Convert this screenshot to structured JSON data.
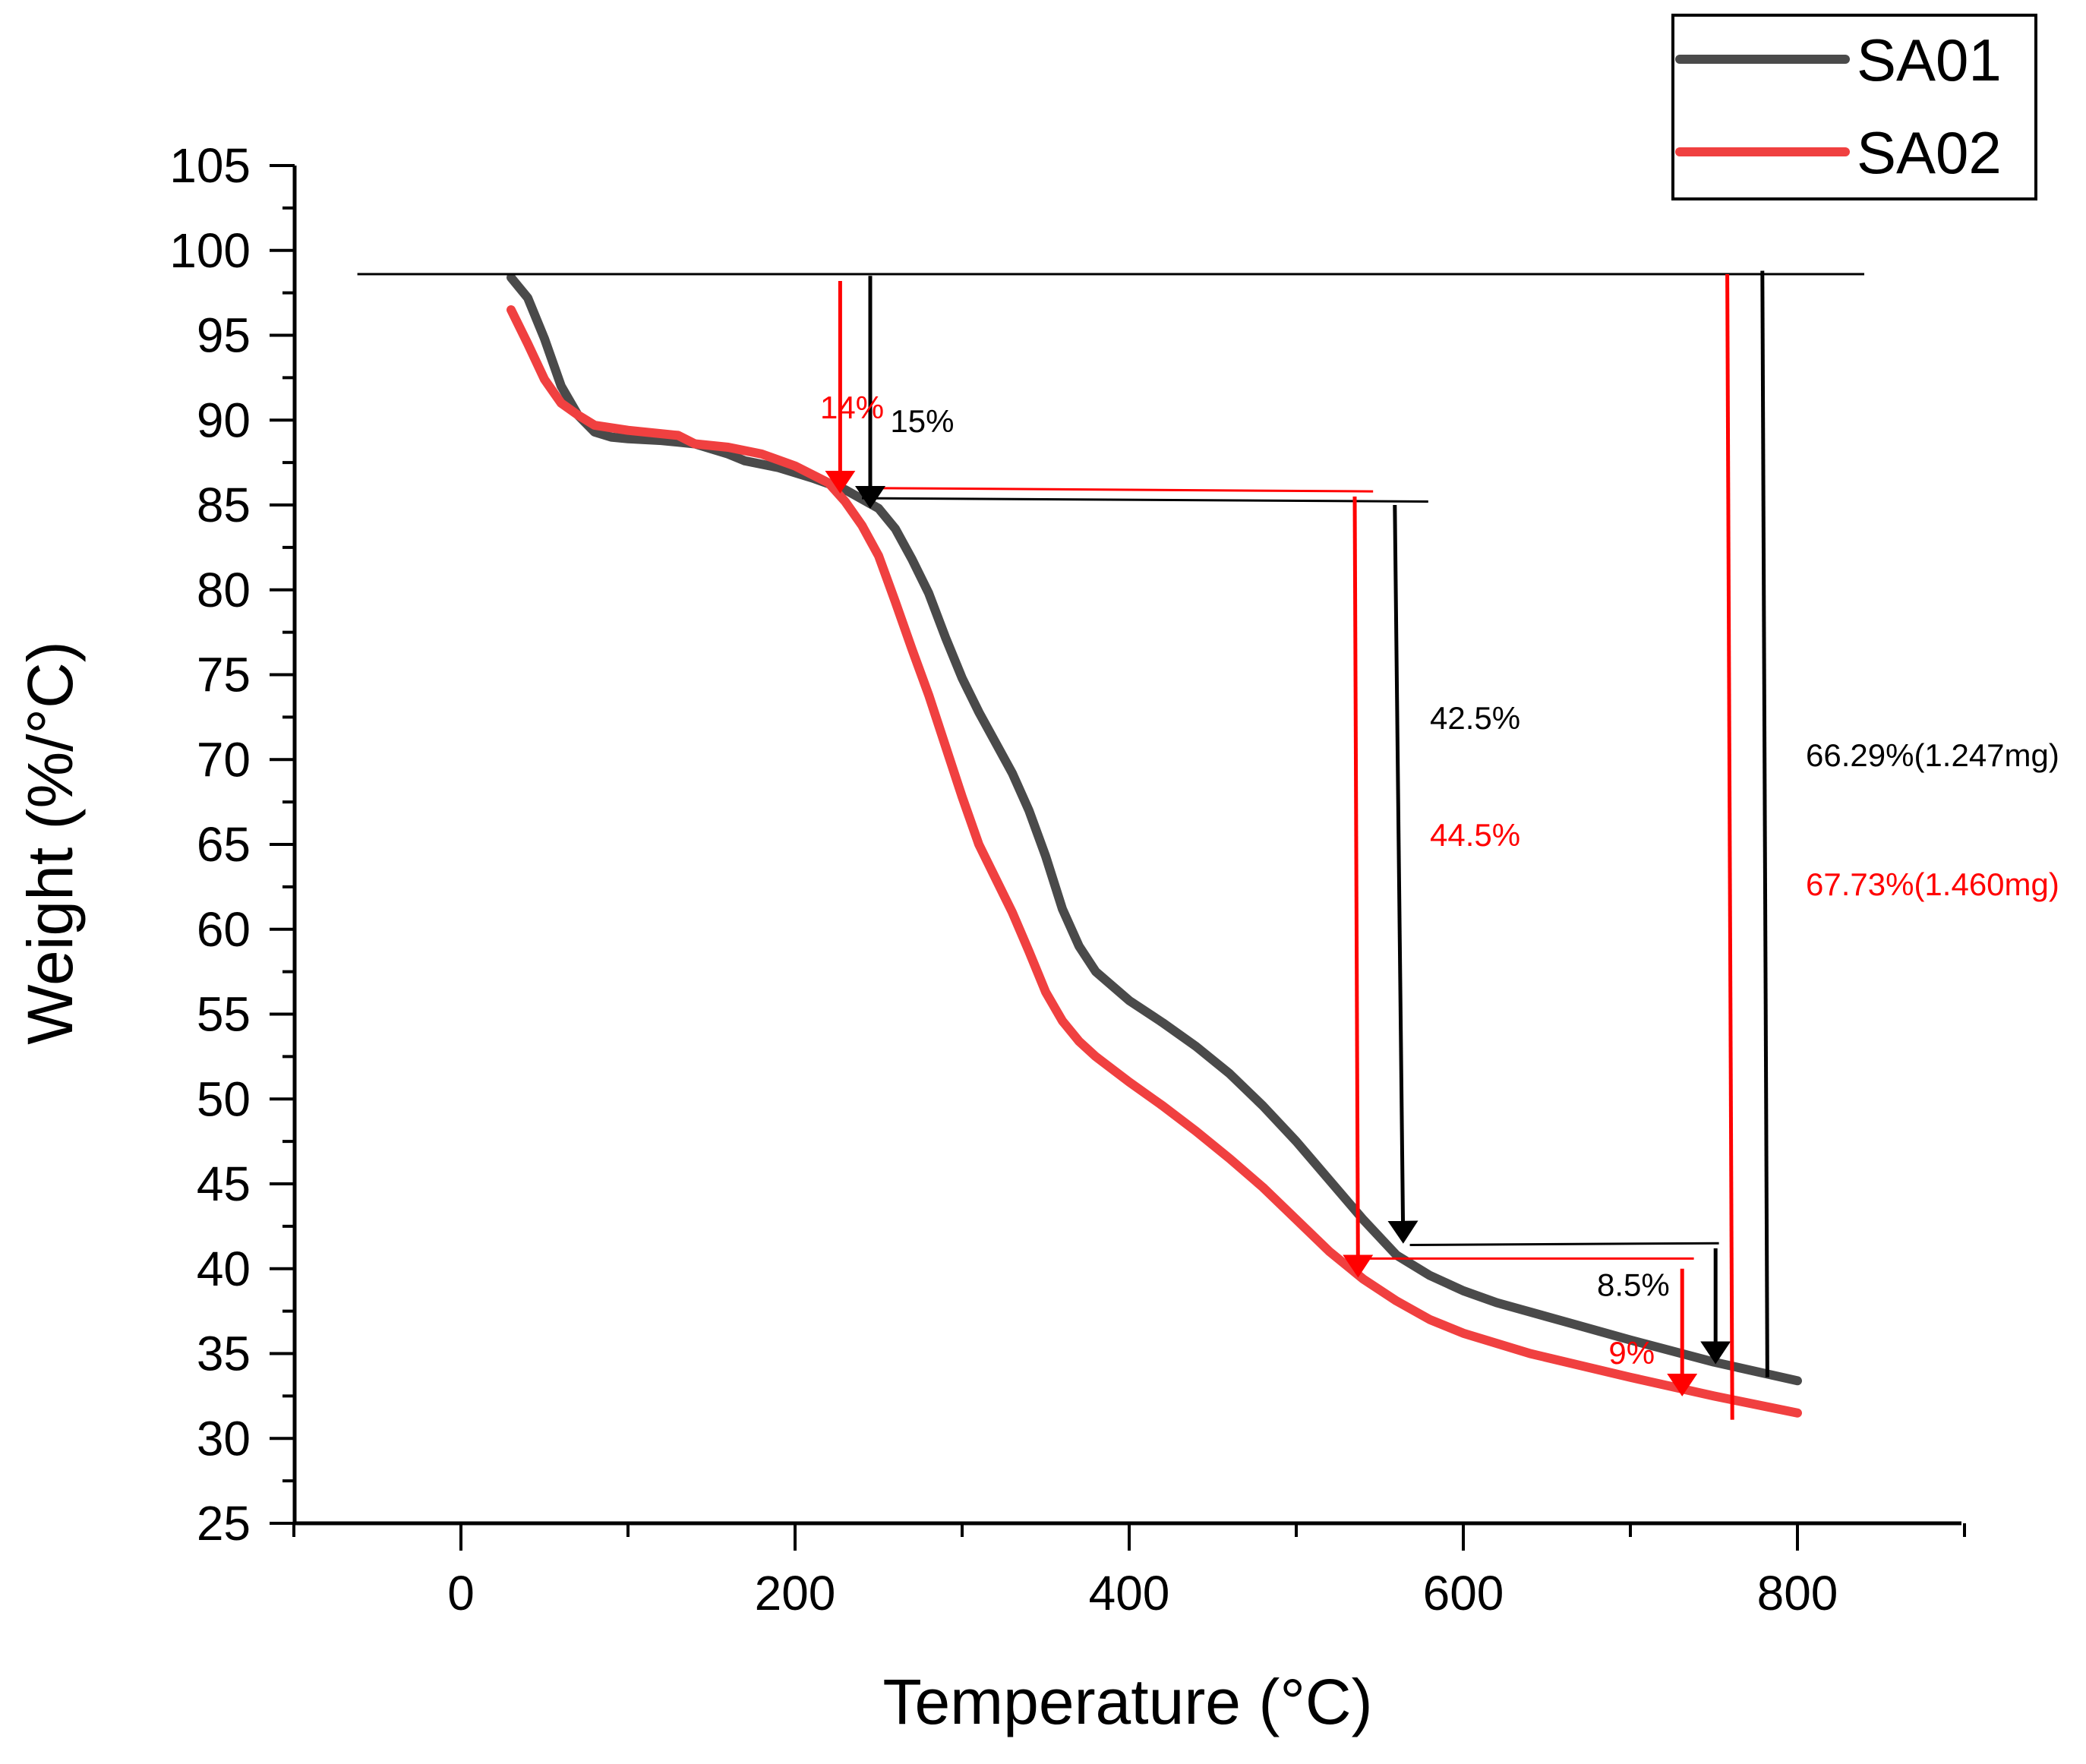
{
  "chart_data": {
    "type": "line",
    "title": "",
    "xlabel": "Temperature (°C)",
    "ylabel": "Weight (%/°C)",
    "xlim": [
      -100,
      900
    ],
    "ylim": [
      25,
      105
    ],
    "xticks": [
      0,
      200,
      400,
      600,
      800
    ],
    "yticks": [
      25,
      30,
      35,
      40,
      45,
      50,
      55,
      60,
      65,
      70,
      75,
      80,
      85,
      90,
      95,
      100,
      105
    ],
    "grid": false,
    "legend_position": "top-right",
    "series": [
      {
        "name": "SA01",
        "color": "#4a4a4a",
        "points": [
          [
            30,
            98.4
          ],
          [
            40,
            97.2
          ],
          [
            50,
            94.8
          ],
          [
            60,
            92.0
          ],
          [
            70,
            90.3
          ],
          [
            80,
            89.3
          ],
          [
            90,
            89.0
          ],
          [
            100,
            88.9
          ],
          [
            120,
            88.8
          ],
          [
            140,
            88.6
          ],
          [
            160,
            88.0
          ],
          [
            170,
            87.6
          ],
          [
            190,
            87.2
          ],
          [
            210,
            86.6
          ],
          [
            230,
            85.9
          ],
          [
            250,
            84.8
          ],
          [
            260,
            83.6
          ],
          [
            270,
            81.8
          ],
          [
            280,
            79.8
          ],
          [
            290,
            77.2
          ],
          [
            300,
            74.8
          ],
          [
            310,
            72.8
          ],
          [
            320,
            71.0
          ],
          [
            330,
            69.2
          ],
          [
            340,
            67.0
          ],
          [
            350,
            64.3
          ],
          [
            360,
            61.2
          ],
          [
            370,
            59.0
          ],
          [
            380,
            57.5
          ],
          [
            400,
            55.8
          ],
          [
            420,
            54.5
          ],
          [
            440,
            53.1
          ],
          [
            460,
            51.5
          ],
          [
            480,
            49.6
          ],
          [
            500,
            47.5
          ],
          [
            520,
            45.2
          ],
          [
            540,
            42.9
          ],
          [
            560,
            40.8
          ],
          [
            580,
            39.6
          ],
          [
            600,
            38.7
          ],
          [
            620,
            38.0
          ],
          [
            660,
            36.9
          ],
          [
            700,
            35.8
          ],
          [
            750,
            34.5
          ],
          [
            800,
            33.4
          ]
        ]
      },
      {
        "name": "SA02",
        "color": "#f04040",
        "points": [
          [
            30,
            96.5
          ],
          [
            40,
            94.5
          ],
          [
            50,
            92.4
          ],
          [
            60,
            91.0
          ],
          [
            70,
            90.3
          ],
          [
            80,
            89.7
          ],
          [
            100,
            89.4
          ],
          [
            130,
            89.1
          ],
          [
            140,
            88.6
          ],
          [
            160,
            88.4
          ],
          [
            180,
            88.0
          ],
          [
            200,
            87.3
          ],
          [
            220,
            86.3
          ],
          [
            230,
            85.2
          ],
          [
            240,
            83.8
          ],
          [
            250,
            82.0
          ],
          [
            260,
            79.3
          ],
          [
            270,
            76.5
          ],
          [
            280,
            73.8
          ],
          [
            290,
            70.8
          ],
          [
            300,
            67.8
          ],
          [
            310,
            65.0
          ],
          [
            320,
            63.0
          ],
          [
            330,
            61.0
          ],
          [
            340,
            58.7
          ],
          [
            350,
            56.3
          ],
          [
            360,
            54.6
          ],
          [
            370,
            53.4
          ],
          [
            380,
            52.5
          ],
          [
            400,
            51.0
          ],
          [
            420,
            49.6
          ],
          [
            440,
            48.1
          ],
          [
            460,
            46.5
          ],
          [
            480,
            44.8
          ],
          [
            500,
            42.9
          ],
          [
            520,
            41.0
          ],
          [
            540,
            39.4
          ],
          [
            560,
            38.1
          ],
          [
            580,
            37.0
          ],
          [
            600,
            36.2
          ],
          [
            640,
            35.0
          ],
          [
            700,
            33.6
          ],
          [
            750,
            32.5
          ],
          [
            800,
            31.5
          ]
        ]
      }
    ],
    "annotations": [
      {
        "text": "14%",
        "color": "#ff0000",
        "x": 215,
        "y": 90.1
      },
      {
        "text": "15%",
        "color": "#000000",
        "x": 257,
        "y": 89.3
      },
      {
        "text": "42.5%",
        "color": "#000000",
        "x": 580,
        "y": 71.8
      },
      {
        "text": "44.5%",
        "color": "#ff0000",
        "x": 580,
        "y": 64.9
      },
      {
        "text": "66.29%(1.247mg)",
        "color": "#000000",
        "x": 805,
        "y": 69.6
      },
      {
        "text": "67.73%(1.460mg)",
        "color": "#ff0000",
        "x": 805,
        "y": 62.0
      },
      {
        "text": "8.5%",
        "color": "#000000",
        "x": 680,
        "y": 38.4
      },
      {
        "text": "9%",
        "color": "#ff0000",
        "x": 687,
        "y": 34.4
      }
    ],
    "reference_lines": [
      {
        "color": "#000000",
        "points": [
          [
            -62,
            98.6
          ],
          [
            840,
            98.6
          ]
        ]
      },
      {
        "color": "#ff0000",
        "points": [
          [
            240,
            86.0
          ],
          [
            546,
            85.8
          ]
        ]
      },
      {
        "color": "#000000",
        "points": [
          [
            240,
            85.4
          ],
          [
            579,
            85.2
          ]
        ]
      },
      {
        "color": "#ff0000",
        "points": [
          [
            540,
            40.6
          ],
          [
            738,
            40.6
          ]
        ]
      },
      {
        "color": "#000000",
        "points": [
          [
            568,
            41.4
          ],
          [
            753,
            41.5
          ]
        ]
      }
    ],
    "drop_arrows": [
      {
        "color": "#ff0000",
        "x0": 227,
        "y0": 98.2,
        "x1": 227,
        "y1": 85.9,
        "head": true
      },
      {
        "color": "#000000",
        "x0": 245,
        "y0": 98.5,
        "x1": 245,
        "y1": 85.0,
        "head": true
      },
      {
        "color": "#ff0000",
        "x0": 535,
        "y0": 85.5,
        "x1": 537,
        "y1": 39.7,
        "head": true
      },
      {
        "color": "#000000",
        "x0": 559,
        "y0": 85.0,
        "x1": 564,
        "y1": 41.7,
        "head": true
      },
      {
        "color": "#ff0000",
        "x0": 731,
        "y0": 40.0,
        "x1": 731,
        "y1": 32.7,
        "head": true
      },
      {
        "color": "#000000",
        "x0": 751,
        "y0": 41.2,
        "x1": 751,
        "y1": 34.6,
        "head": true
      },
      {
        "color": "#ff0000",
        "x0": 758,
        "y0": 98.6,
        "x1": 761,
        "y1": 31.1,
        "head": false
      },
      {
        "color": "#000000",
        "x0": 779,
        "y0": 98.8,
        "x1": 782,
        "y1": 33.6,
        "head": false
      }
    ]
  }
}
